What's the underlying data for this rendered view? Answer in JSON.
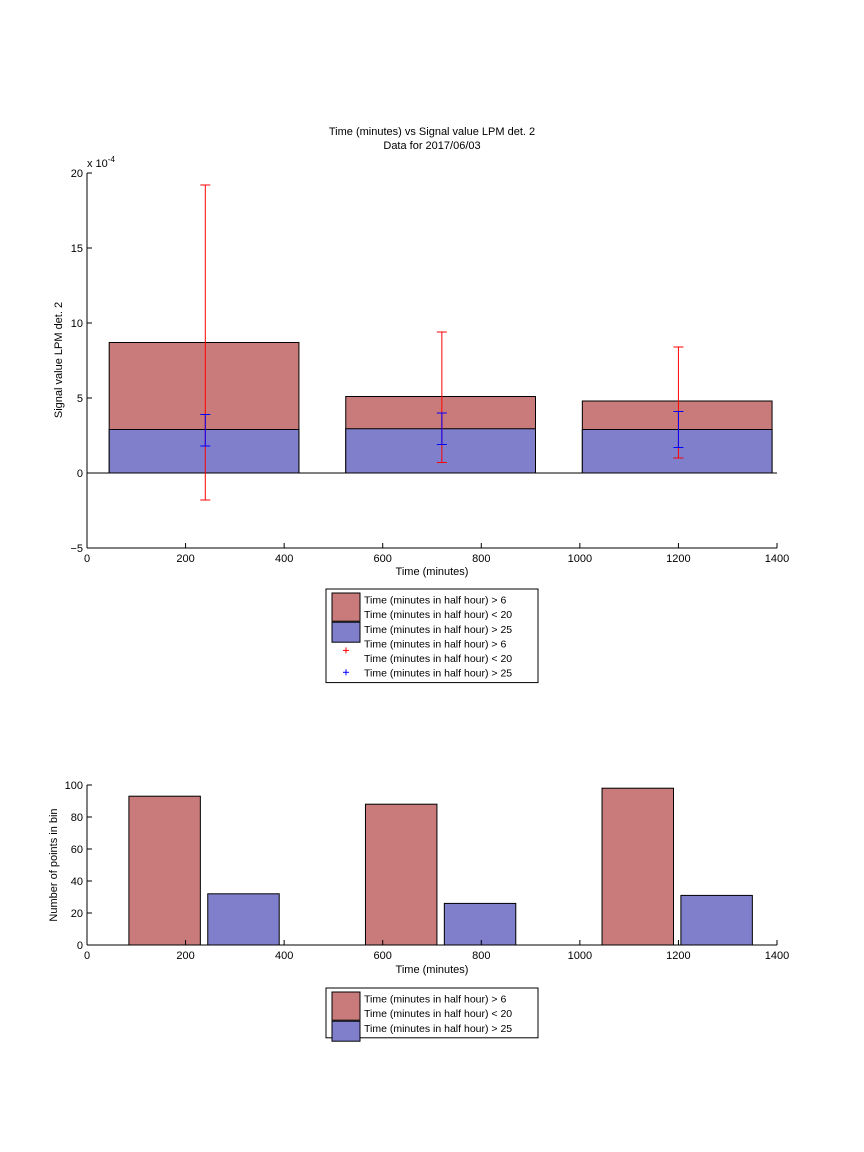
{
  "colors": {
    "series1": "#c97b7b",
    "series2": "#7f7fcc",
    "err1": "#ff0000",
    "err2": "#0000ff"
  },
  "chart_data": [
    {
      "type": "bar",
      "title": "Time (minutes) vs Signal value LPM det. 2",
      "subtitle": "Data for 2017/06/03",
      "xlabel": "Time (minutes)",
      "ylabel": "Signal value LPM det. 2",
      "y_exponent_label": "x 10",
      "y_exponent_power": "-4",
      "xlim": [
        0,
        1400
      ],
      "ylim": [
        -5,
        20
      ],
      "xticks": [
        "0",
        "200",
        "400",
        "600",
        "800",
        "1000",
        "1200",
        "1400"
      ],
      "yticks": [
        "−5",
        "0",
        "5",
        "10",
        "15",
        "20"
      ],
      "bars": [
        {
          "x0": 45,
          "x1": 430,
          "base": 0,
          "series1": 8.7,
          "series2": 2.9
        },
        {
          "x0": 525,
          "x1": 910,
          "base": 0,
          "series1": 5.1,
          "series2": 2.95
        },
        {
          "x0": 1005,
          "x1": 1390,
          "base": 0,
          "series1": 4.8,
          "series2": 2.9
        }
      ],
      "errorbars": [
        {
          "series": 1,
          "x": 240,
          "low": -1.8,
          "high": 19.2
        },
        {
          "series": 1,
          "x": 720,
          "low": 0.7,
          "high": 9.4
        },
        {
          "series": 1,
          "x": 1200,
          "low": 1.0,
          "high": 8.4
        },
        {
          "series": 2,
          "x": 240,
          "low": 1.8,
          "high": 3.9
        },
        {
          "series": 2,
          "x": 720,
          "low": 1.9,
          "high": 4.0
        },
        {
          "series": 2,
          "x": 1200,
          "low": 1.7,
          "high": 4.1
        }
      ],
      "legend": {
        "placement": "below",
        "entries": [
          {
            "kind": "patch",
            "series": 1,
            "lines": [
              "Time (minutes in half hour) > 6",
              "Time (minutes in half hour) < 20"
            ]
          },
          {
            "kind": "patch",
            "series": 2,
            "lines": [
              "Time (minutes in half hour) > 25"
            ]
          },
          {
            "kind": "marker",
            "series": 1,
            "lines": [
              "Time (minutes in half hour) > 6",
              "Time (minutes in half hour) < 20"
            ]
          },
          {
            "kind": "marker",
            "series": 2,
            "lines": [
              "Time (minutes in half hour) > 25"
            ]
          }
        ]
      }
    },
    {
      "type": "bar",
      "title": "",
      "xlabel": "Time (minutes)",
      "ylabel": "Number of points in bin",
      "xlim": [
        0,
        1400
      ],
      "ylim": [
        0,
        100
      ],
      "xticks": [
        "0",
        "200",
        "400",
        "600",
        "800",
        "1000",
        "1200",
        "1400"
      ],
      "yticks": [
        "0",
        "20",
        "40",
        "60",
        "80",
        "100"
      ],
      "bars": [
        {
          "series": 1,
          "x0": 85,
          "x1": 230,
          "value": 93
        },
        {
          "series": 2,
          "x0": 245,
          "x1": 390,
          "value": 32
        },
        {
          "series": 1,
          "x0": 565,
          "x1": 710,
          "value": 88
        },
        {
          "series": 2,
          "x0": 725,
          "x1": 870,
          "value": 26
        },
        {
          "series": 1,
          "x0": 1045,
          "x1": 1190,
          "value": 98
        },
        {
          "series": 2,
          "x0": 1205,
          "x1": 1350,
          "value": 31
        }
      ],
      "legend": {
        "placement": "below",
        "entries": [
          {
            "kind": "patch",
            "series": 1,
            "lines": [
              "Time (minutes in half hour) > 6",
              "Time (minutes in half hour) < 20"
            ]
          },
          {
            "kind": "patch",
            "series": 2,
            "lines": [
              "Time (minutes in half hour) > 25"
            ]
          }
        ]
      }
    }
  ]
}
